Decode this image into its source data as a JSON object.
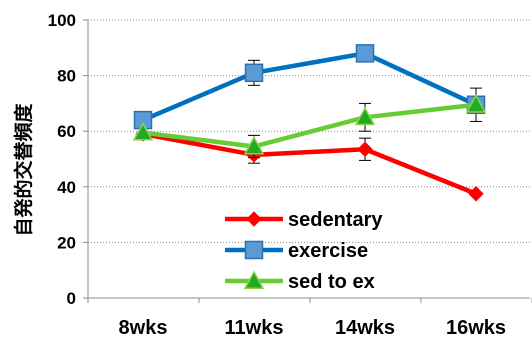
{
  "chart_data": {
    "type": "line",
    "title": "",
    "xlabel": "",
    "ylabel": "自発的交替頻度",
    "categories": [
      "8wks",
      "11wks",
      "14wks",
      "16wks"
    ],
    "ylim": [
      0,
      100
    ],
    "yticks": [
      0,
      20,
      40,
      60,
      80,
      100
    ],
    "grid": true,
    "legend_position": "bottom-right",
    "series": [
      {
        "name": "sedentary",
        "values": [
          59,
          51.5,
          53.5,
          37.5
        ],
        "errors": [
          null,
          3,
          4,
          null
        ],
        "color": "#ff0000",
        "marker": "diamond"
      },
      {
        "name": "exercise",
        "values": [
          64,
          81,
          88,
          69.5
        ],
        "errors": [
          null,
          4.5,
          null,
          6
        ],
        "color": "#0070c0",
        "marker": "square"
      },
      {
        "name": "sed to ex",
        "values": [
          59.5,
          54.5,
          65,
          69.5
        ],
        "errors": [
          null,
          4,
          5,
          null
        ],
        "color": "#66cc33",
        "marker": "triangle"
      }
    ]
  }
}
